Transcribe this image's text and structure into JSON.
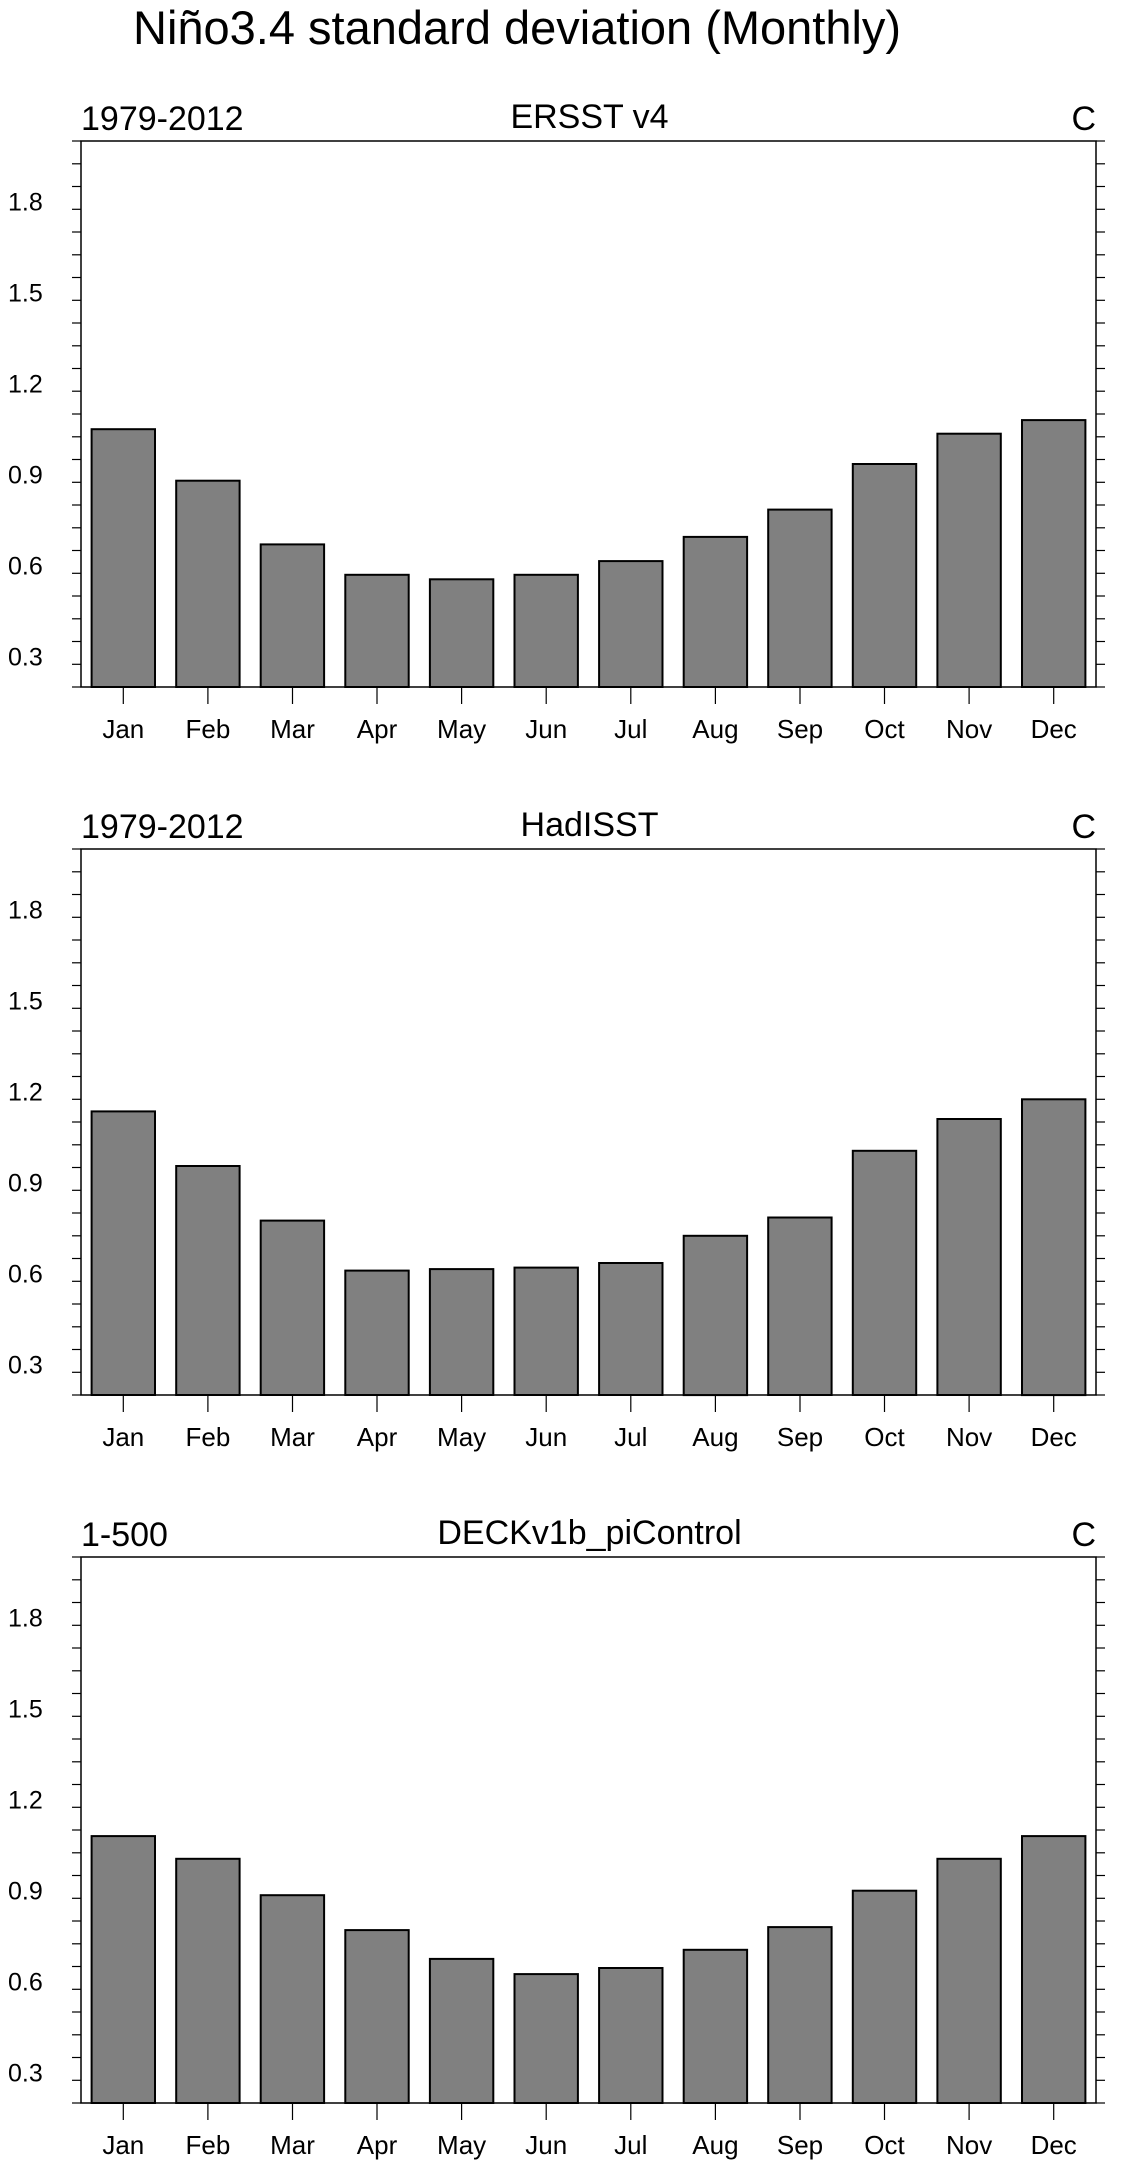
{
  "figure_title": "Niño3.4 standard deviation (Monthly)",
  "chart_data": [
    {
      "type": "bar",
      "title": "ERSST v4",
      "left_label": "1979-2012",
      "right_label": "C",
      "categories": [
        "Jan",
        "Feb",
        "Mar",
        "Apr",
        "May",
        "Jun",
        "Jul",
        "Aug",
        "Sep",
        "Oct",
        "Nov",
        "Dec"
      ],
      "values": [
        1.05,
        0.88,
        0.67,
        0.57,
        0.555,
        0.57,
        0.615,
        0.695,
        0.785,
        0.935,
        1.035,
        1.08
      ],
      "ylim": [
        0.2,
        2.0
      ],
      "yticks": [
        "0.3",
        "0.6",
        "0.9",
        "1.2",
        "1.5",
        "1.8"
      ],
      "bar_color": "#808080"
    },
    {
      "type": "bar",
      "title": "HadISST",
      "left_label": "1979-2012",
      "right_label": "C",
      "categories": [
        "Jan",
        "Feb",
        "Mar",
        "Apr",
        "May",
        "Jun",
        "Jul",
        "Aug",
        "Sep",
        "Oct",
        "Nov",
        "Dec"
      ],
      "values": [
        1.135,
        0.955,
        0.775,
        0.61,
        0.615,
        0.62,
        0.635,
        0.725,
        0.785,
        1.005,
        1.11,
        1.175
      ],
      "ylim": [
        0.2,
        2.0
      ],
      "yticks": [
        "0.3",
        "0.6",
        "0.9",
        "1.2",
        "1.5",
        "1.8"
      ],
      "bar_color": "#808080"
    },
    {
      "type": "bar",
      "title": "DECKv1b_piControl",
      "left_label": "1-500",
      "right_label": "C",
      "categories": [
        "Jan",
        "Feb",
        "Mar",
        "Apr",
        "May",
        "Jun",
        "Jul",
        "Aug",
        "Sep",
        "Oct",
        "Nov",
        "Dec"
      ],
      "values": [
        1.08,
        1.005,
        0.885,
        0.77,
        0.675,
        0.625,
        0.645,
        0.705,
        0.78,
        0.9,
        1.005,
        1.08
      ],
      "ylim": [
        0.2,
        2.0
      ],
      "yticks": [
        "0.3",
        "0.6",
        "0.9",
        "1.2",
        "1.5",
        "1.8"
      ],
      "bar_color": "#808080"
    }
  ]
}
